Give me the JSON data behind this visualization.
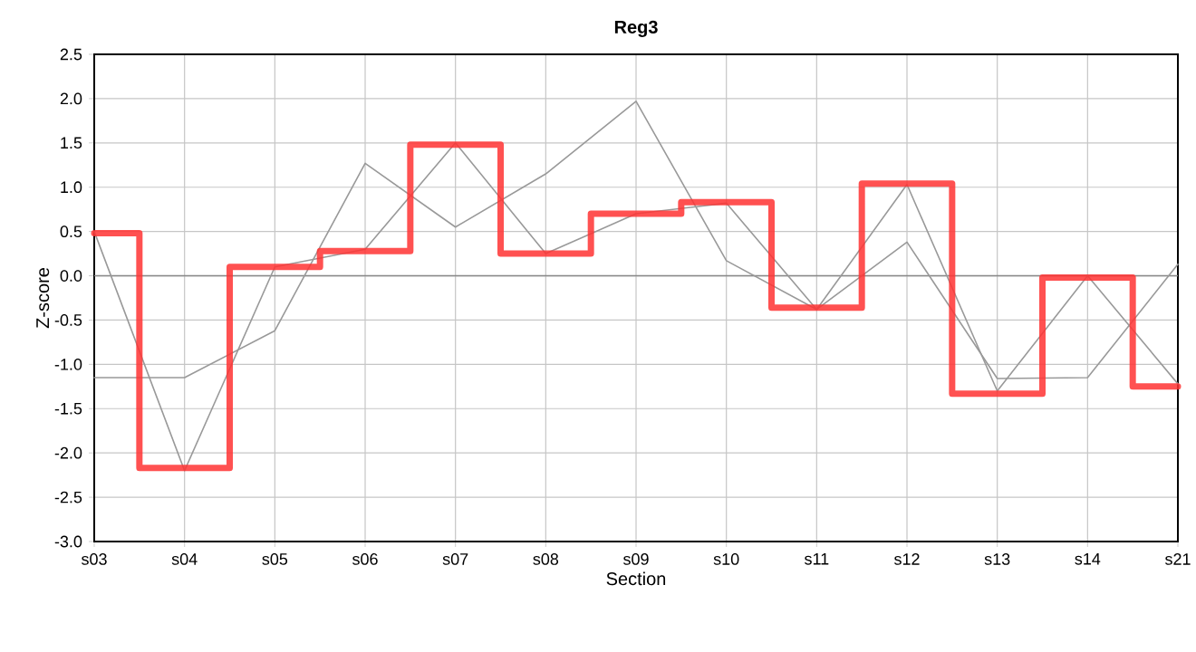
{
  "chart_data": {
    "type": "line",
    "title": "Reg3",
    "xlabel": "Section",
    "ylabel": "Z-score",
    "categories": [
      "s03",
      "s04",
      "s05",
      "s06",
      "s07",
      "s08",
      "s09",
      "s10",
      "s11",
      "s12",
      "s13",
      "s14",
      "s21"
    ],
    "series": [
      {
        "color": "#999999",
        "values": [
          -1.15,
          -1.15,
          -0.62,
          1.27,
          0.55,
          1.15,
          1.97,
          0.17,
          -0.38,
          0.38,
          -1.16,
          -1.15,
          0.13
        ]
      },
      {
        "color": "#999999",
        "values": [
          0.5,
          -2.2,
          0.1,
          0.3,
          1.5,
          0.25,
          0.7,
          0.82,
          -0.38,
          1.03,
          -1.3,
          0.0,
          -1.22
        ]
      },
      {
        "type": "step",
        "color": "#ff3333",
        "values": [
          0.48,
          -2.17,
          0.1,
          0.28,
          1.48,
          0.25,
          0.7,
          0.83,
          -0.36,
          1.04,
          -1.33,
          -0.02,
          -1.25
        ]
      }
    ],
    "ylim": [
      -3.0,
      2.5
    ],
    "yticks": [
      {
        "value": -3.0,
        "label": "-3.0"
      },
      {
        "value": -2.5,
        "label": "-2.5"
      },
      {
        "value": -2.0,
        "label": "-2.0"
      },
      {
        "value": -1.5,
        "label": "-1.5"
      },
      {
        "value": -1.0,
        "label": "-1.0"
      },
      {
        "value": -0.5,
        "label": "-0.5"
      },
      {
        "value": 0.0,
        "label": "0.0"
      },
      {
        "value": 0.5,
        "label": "0.5"
      },
      {
        "value": 1.0,
        "label": "1.0"
      },
      {
        "value": 1.5,
        "label": "1.5"
      },
      {
        "value": 2.0,
        "label": "2.0"
      },
      {
        "value": 2.5,
        "label": "2.5"
      }
    ],
    "ref_lines": [
      {
        "axis": "y",
        "value": 0,
        "color": "#888888"
      }
    ],
    "grid": true
  }
}
